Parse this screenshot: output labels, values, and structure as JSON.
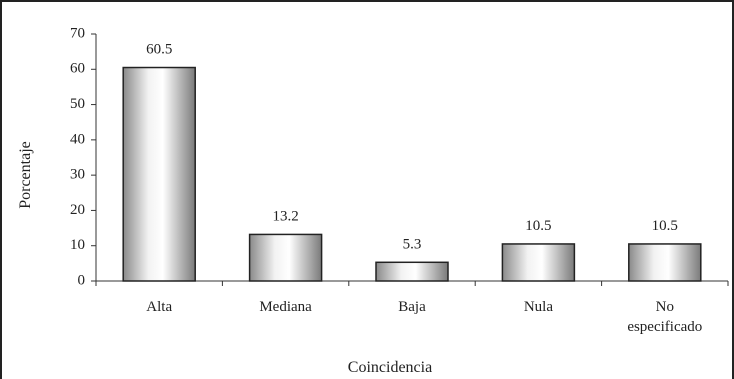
{
  "chart_data": {
    "type": "bar",
    "title": "",
    "xlabel": "Coincidencia",
    "ylabel": "Porcentaje",
    "categories": [
      "Alta",
      "Mediana",
      "Baja",
      "Nula",
      "No\nespecificado"
    ],
    "values": [
      60.5,
      13.2,
      5.3,
      10.5,
      10.5
    ],
    "data_labels": [
      "60.5",
      "13.2",
      "5.3",
      "10.5",
      "10.5"
    ],
    "ylim": [
      0,
      70
    ],
    "yticks": [
      0,
      10,
      20,
      30,
      40,
      50,
      60,
      70
    ],
    "grid": false,
    "legend": "none",
    "bar_fill": "cylinder-gradient gray"
  }
}
